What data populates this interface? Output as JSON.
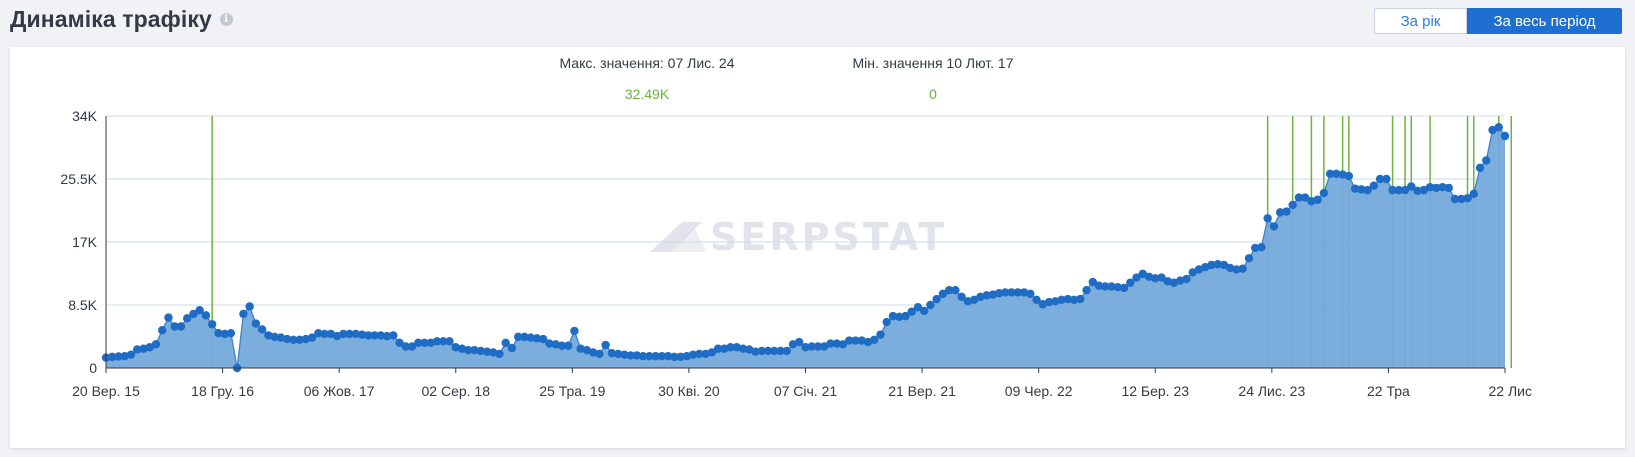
{
  "header": {
    "title": "Динаміка трафіку",
    "info_icon": "info-icon"
  },
  "period_toggle": {
    "year_label": "За рік",
    "all_label": "За весь період",
    "active": "all"
  },
  "stats": {
    "max_label": "Макс. значення: 07 Лис. 24",
    "max_value": "32.49K",
    "min_label": "Мін. значення 10 Лют. 17",
    "min_value": "0"
  },
  "watermark": "SERPSTAT",
  "colors": {
    "area": "#74a9db",
    "line": "#3f82c9",
    "point": "#1f6cc4",
    "event_line": "#6db33f",
    "grid": "#cfd8ea",
    "stat_value": "#6db33f",
    "active_button": "#1f6fd0"
  },
  "chart_data": {
    "type": "area",
    "ylim": [
      0,
      34000
    ],
    "y_ticks": [
      0,
      8500,
      17000,
      25500,
      34000
    ],
    "y_tick_labels": [
      "0",
      "8.5K",
      "17K",
      "25.5K",
      "34K"
    ],
    "x_tick_labels": [
      "20 Вер. 15",
      "18 Гру. 16",
      "06 Жов. 17",
      "02 Сер. 18",
      "25 Тра. 19",
      "30 Кві. 20",
      "07 Січ. 21",
      "21 Вер. 21",
      "09 Чер. 22",
      "12 Бер. 23",
      "24 Лис. 23",
      "22 Тра",
      "22 Лис"
    ],
    "grid": true,
    "values": [
      1400,
      1500,
      1550,
      1600,
      1800,
      2500,
      2600,
      2800,
      3200,
      5100,
      6800,
      5600,
      5600,
      6700,
      7300,
      7800,
      7100,
      5900,
      4700,
      4600,
      4700,
      0,
      7300,
      8300,
      6000,
      5200,
      4400,
      4200,
      4100,
      3900,
      3800,
      3800,
      3900,
      4100,
      4700,
      4600,
      4600,
      4300,
      4600,
      4600,
      4600,
      4500,
      4400,
      4400,
      4400,
      4300,
      4400,
      3400,
      2900,
      2900,
      3400,
      3400,
      3400,
      3600,
      3600,
      3600,
      2800,
      2600,
      2400,
      2400,
      2300,
      2200,
      2100,
      1900,
      3400,
      2700,
      4200,
      4200,
      4100,
      4000,
      3900,
      3300,
      3200,
      3000,
      3000,
      5000,
      2600,
      2400,
      2100,
      1900,
      3100,
      2000,
      1900,
      1800,
      1700,
      1700,
      1600,
      1600,
      1600,
      1600,
      1600,
      1500,
      1500,
      1600,
      1800,
      1900,
      1900,
      2100,
      2600,
      2600,
      2800,
      2800,
      2600,
      2500,
      2200,
      2300,
      2300,
      2300,
      2300,
      2300,
      3200,
      3500,
      2800,
      2900,
      2900,
      2900,
      3300,
      3300,
      3200,
      3700,
      3700,
      3700,
      3500,
      3800,
      4500,
      6200,
      7000,
      6900,
      7000,
      7600,
      8200,
      7700,
      8500,
      9300,
      10000,
      10500,
      10500,
      9600,
      9000,
      9200,
      9600,
      9800,
      9900,
      10100,
      10200,
      10200,
      10200,
      10200,
      10000,
      9200,
      8600,
      8900,
      9000,
      9200,
      9300,
      9200,
      9300,
      10500,
      11600,
      11100,
      11000,
      11000,
      10900,
      10800,
      11500,
      12200,
      12700,
      12300,
      12100,
      12200,
      11700,
      11500,
      11800,
      12000,
      12900,
      13300,
      13600,
      13900,
      14000,
      13900,
      13500,
      13300,
      13400,
      14800,
      16200,
      16300,
      20200,
      19100,
      21000,
      21100,
      22000,
      23000,
      23000,
      22500,
      22700,
      23600,
      26200,
      26200,
      26100,
      25900,
      24200,
      24100,
      24000,
      24600,
      25500,
      25500,
      24000,
      24000,
      24000,
      24500,
      23900,
      24000,
      24400,
      24300,
      24400,
      24300,
      22800,
      22800,
      22900,
      23500,
      27000,
      28000,
      32100,
      32490,
      31300
    ],
    "event_markers_index": [
      17,
      186,
      190,
      193,
      195,
      198,
      199,
      206,
      208,
      209,
      212,
      218,
      219,
      223,
      225
    ]
  }
}
